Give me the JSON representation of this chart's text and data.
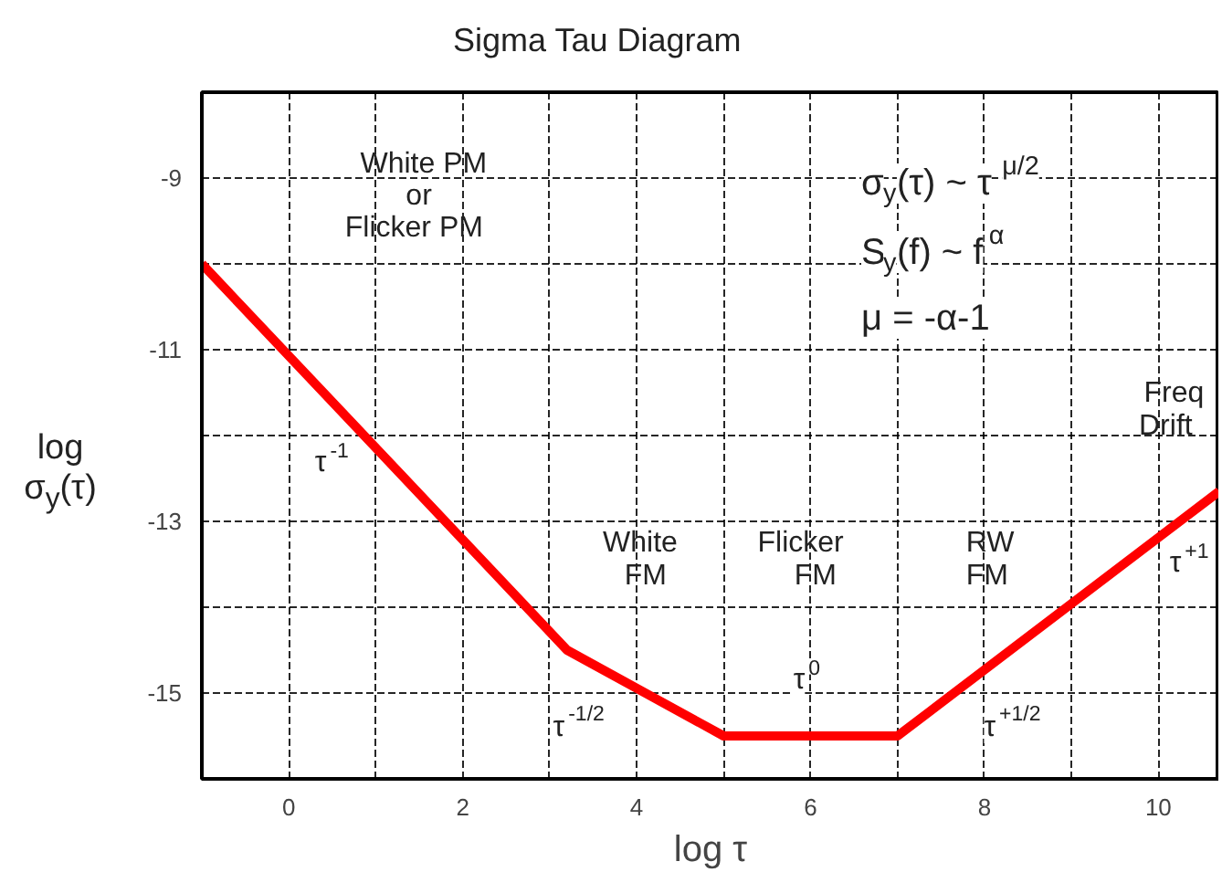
{
  "chart_data": {
    "type": "line",
    "title": "Sigma Tau Diagram",
    "xlabel": "log τ",
    "ylabel": "log\nσ$_{y}$(τ)",
    "x": [
      -1,
      3.2,
      5,
      7,
      10.7
    ],
    "series": [
      {
        "color": "#ff0000",
        "values": [
          -10,
          -14.5,
          -15.5,
          -15.5,
          -12.65
        ]
      }
    ],
    "xlim": [
      -1,
      10.7
    ],
    "ylim": [
      -16,
      -8
    ],
    "xticks": [
      0,
      {
        "value": 1,
        "label": null
      },
      2,
      {
        "value": 3,
        "label": null
      },
      4,
      {
        "value": 5,
        "label": null
      },
      6,
      {
        "value": 7,
        "label": null
      },
      8,
      {
        "value": 9,
        "label": null
      },
      10
    ],
    "yticks": [
      {
        "value": -16,
        "label": null
      },
      -15,
      {
        "value": -14,
        "label": null
      },
      -13,
      {
        "value": -12,
        "label": null
      },
      -11,
      {
        "value": -10,
        "label": null
      },
      -9
    ],
    "grid": true,
    "marker": "none",
    "line_style": "solid",
    "annotations": [
      "White PM\nor\nFlicker PM",
      "τ$^{-1}$",
      "White\nFM",
      "Flicker\nFM",
      "RW\nFM",
      "Freq\nDrift",
      "τ$^{-1/2}$",
      "τ$^{0}$",
      "τ$^{+1/2}$",
      "τ$^{+1}$",
      "σ$_{y}$(τ) ~ τ$^{μ/2}$",
      "S$_{y}$(f) ~ f$^{α}$",
      "μ = -α-1"
    ]
  }
}
